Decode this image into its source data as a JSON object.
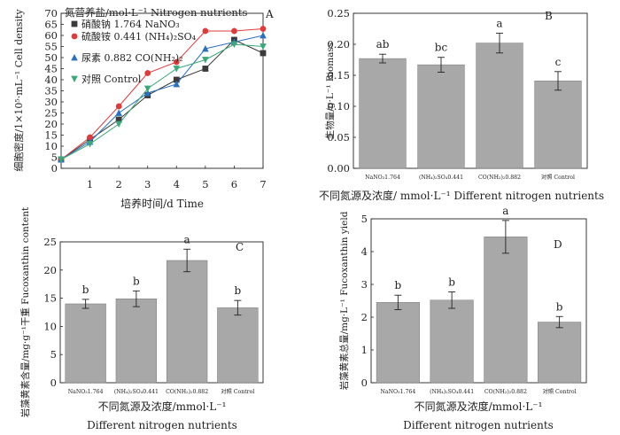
{
  "colors": {
    "bar": "#a8a8a8",
    "series": [
      "#3a3a3a",
      "#e03a3a",
      "#2a6fc0",
      "#3aa878"
    ]
  },
  "chart_data": [
    {
      "panel": "A",
      "type": "line",
      "xlabel": "培养时间/d Time",
      "ylabel": "细胞密度/1×10⁵·mL⁻¹ Cell density",
      "legend_title": "氮营养盐/mol·L⁻¹ Nitrogen nutrients",
      "legend_position": "top-left",
      "x": [
        0,
        1,
        2,
        3,
        4,
        5,
        6,
        7
      ],
      "xlim": [
        0,
        7
      ],
      "ylim": [
        0,
        70
      ],
      "xticks": [
        "1",
        "2",
        "3",
        "4",
        "5",
        "6",
        "7"
      ],
      "yticks": [
        "0",
        "5",
        "10",
        "15",
        "20",
        "25",
        "30",
        "35",
        "40",
        "45",
        "50",
        "55",
        "60",
        "65",
        "70"
      ],
      "series": [
        {
          "name": "硝酸钠 1.764 NaNO₃",
          "marker": "square",
          "values": [
            4,
            13,
            22,
            33,
            40,
            45,
            58,
            52
          ]
        },
        {
          "name": "硫酸铵 0.441 (NH₄)₂SO₄",
          "marker": "circle",
          "values": [
            4,
            14,
            28,
            43,
            48,
            62,
            62,
            63
          ]
        },
        {
          "name": "尿素 0.882 CO(NH₂)₂",
          "marker": "triangle-up",
          "values": [
            4,
            12,
            25,
            34,
            38,
            54,
            57,
            60
          ]
        },
        {
          "name": "对照 Control",
          "marker": "triangle-down",
          "values": [
            4,
            11,
            20,
            36,
            45,
            49,
            56,
            55
          ]
        }
      ]
    },
    {
      "panel": "B",
      "type": "bar",
      "xlabel": "不同氮源及浓度/ mmol·L⁻¹ Different nitrogen nutrients",
      "ylabel": "生物量/g·L⁻¹ Biomass",
      "ylim": [
        0,
        0.25
      ],
      "yticks": [
        "0.00",
        "0.05",
        "0.10",
        "0.15",
        "0.20",
        "0.25"
      ],
      "categories": [
        "NaNO₃1.764",
        "(NH₄)₂SO₄0.441",
        "CO(NH₂)₂0.882",
        "对照 Control"
      ],
      "values": [
        0.177,
        0.167,
        0.202,
        0.141
      ],
      "errors": [
        0.007,
        0.012,
        0.016,
        0.015
      ],
      "labels": [
        "ab",
        "bc",
        "a",
        "c"
      ]
    },
    {
      "panel": "C",
      "type": "bar",
      "xlabel": "不同氮源及浓度/mmol·L⁻¹ Different nitrogen nutrients",
      "ylabel": "岩藻黄素含量/mg·g⁻¹干重 Fucoxanthin content",
      "ylim": [
        0,
        25
      ],
      "yticks": [
        "0",
        "5",
        "10",
        "15",
        "20",
        "25"
      ],
      "categories": [
        "NaNO₃1.764",
        "(NH₄)₂SO₄0.441",
        "CO(NH₂)₂0.882",
        "对照 Control"
      ],
      "values": [
        14.0,
        14.9,
        21.7,
        13.3
      ],
      "errors": [
        0.8,
        1.4,
        2.0,
        1.3
      ],
      "labels": [
        "b",
        "b",
        "a",
        "b"
      ]
    },
    {
      "panel": "D",
      "type": "bar",
      "xlabel": "不同氮源及浓度/mmol·L⁻¹ Different nitrogen nutrients",
      "ylabel": "岩藻黄素总量/mg·L⁻¹ Fucoxanthin yield",
      "ylim": [
        0,
        5
      ],
      "yticks": [
        "0",
        "1",
        "2",
        "3",
        "4",
        "5"
      ],
      "categories": [
        "NaNO₃1.764",
        "(NH₄)₂SO₄0.441",
        "CO(NH₂)₂0.882",
        "对照 Control"
      ],
      "values": [
        2.45,
        2.52,
        4.45,
        1.85
      ],
      "errors": [
        0.22,
        0.25,
        0.5,
        0.17
      ],
      "labels": [
        "b",
        "b",
        "a",
        "b"
      ]
    }
  ]
}
